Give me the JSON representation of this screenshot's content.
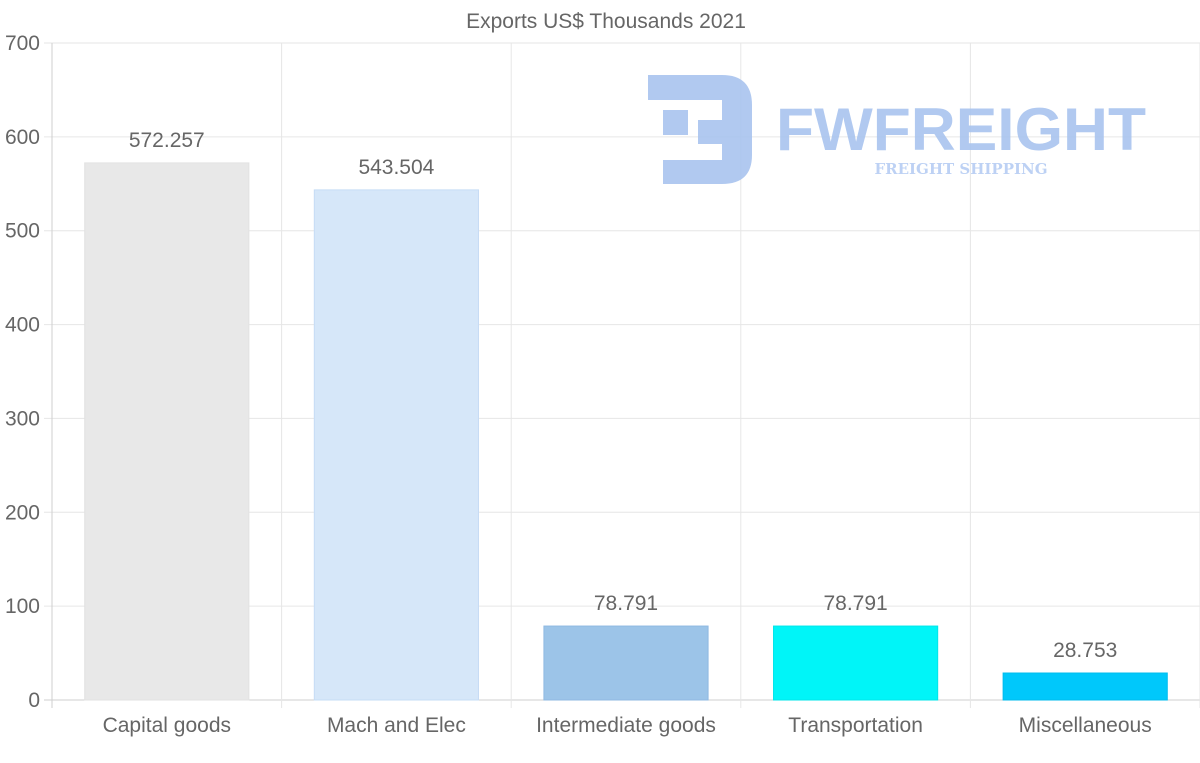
{
  "chart_data": {
    "type": "bar",
    "title": "Exports US$ Thousands 2021",
    "categories": [
      "Capital goods",
      "Mach and Elec",
      "Intermediate goods",
      "Transportation",
      "Miscellaneous"
    ],
    "values": [
      572.257,
      543.504,
      78.791,
      78.791,
      28.753
    ],
    "value_labels": [
      "572.257",
      "543.504",
      "78.791",
      "78.791",
      "28.753"
    ],
    "colors": [
      "#e8e8e8",
      "#d6e7f9",
      "#9cc4e8",
      "#00f5f8",
      "#00c8fb"
    ],
    "border_colors": [
      "#e2e2e2",
      "#c6dcf5",
      "#8fb9e2",
      "#00e6ea",
      "#00bbee"
    ],
    "ylim": [
      0,
      700
    ],
    "yticks": [
      0,
      100,
      200,
      300,
      400,
      500,
      600,
      700
    ],
    "xlabel": "",
    "ylabel": "",
    "grid": true
  },
  "watermark": {
    "name": "FWFREIGHT",
    "tagline": "FREIGHT SHIPPING",
    "color": "#a9c4ef"
  }
}
